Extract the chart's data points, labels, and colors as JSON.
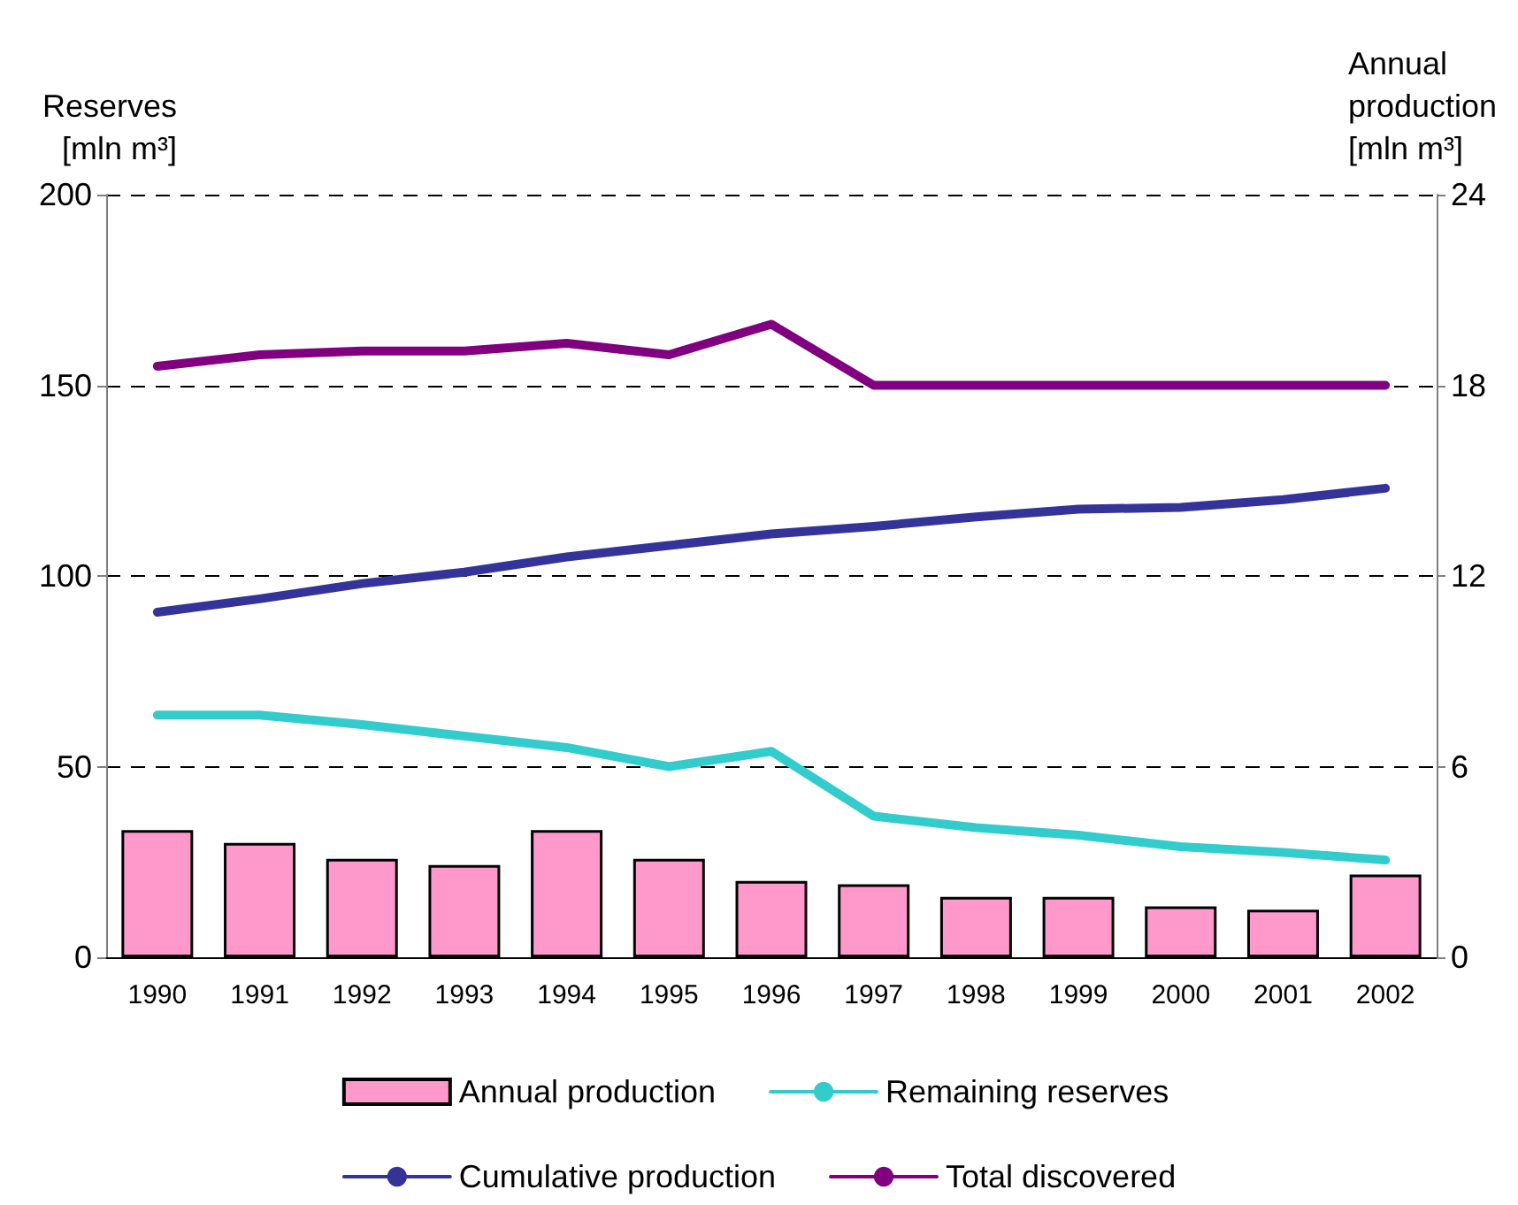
{
  "chart_data": {
    "type": "line",
    "categories": [
      "1990",
      "1991",
      "1992",
      "1993",
      "1994",
      "1995",
      "1996",
      "1997",
      "1998",
      "1999",
      "2000",
      "2001",
      "2002"
    ],
    "ylabel": "Reserves\n[mln m³]",
    "y2label": "Annual\nproduction\n[mln m³]",
    "ylim": [
      0,
      200
    ],
    "yticks": [
      0,
      50,
      100,
      150,
      200
    ],
    "y2lim": [
      0,
      24
    ],
    "y2ticks": [
      0,
      6,
      12,
      18,
      24
    ],
    "grid": "y",
    "legend": "bottom",
    "series": [
      {
        "name": "Annual production",
        "type": "bar",
        "axis": "y2",
        "color": "#ff99cc",
        "values": [
          4.0,
          3.6,
          3.1,
          2.9,
          4.0,
          3.1,
          2.4,
          2.3,
          1.9,
          1.9,
          1.6,
          1.5,
          2.6
        ]
      },
      {
        "name": "Remaining reserves",
        "color": "#33cccc",
        "values": [
          63.5,
          63.5,
          61,
          58,
          55,
          50,
          54,
          37,
          34,
          32,
          29,
          27.5,
          25.5
        ]
      },
      {
        "name": "Cumulative production",
        "color": "#333399",
        "values": [
          90.5,
          94,
          98,
          101,
          105,
          108,
          111,
          113,
          115.5,
          117.5,
          118,
          120,
          123
        ]
      },
      {
        "name": "Total discovered",
        "color": "#800080",
        "values": [
          155,
          158,
          159,
          159,
          161,
          158,
          166,
          150,
          150,
          150,
          150,
          150,
          150
        ]
      }
    ]
  }
}
